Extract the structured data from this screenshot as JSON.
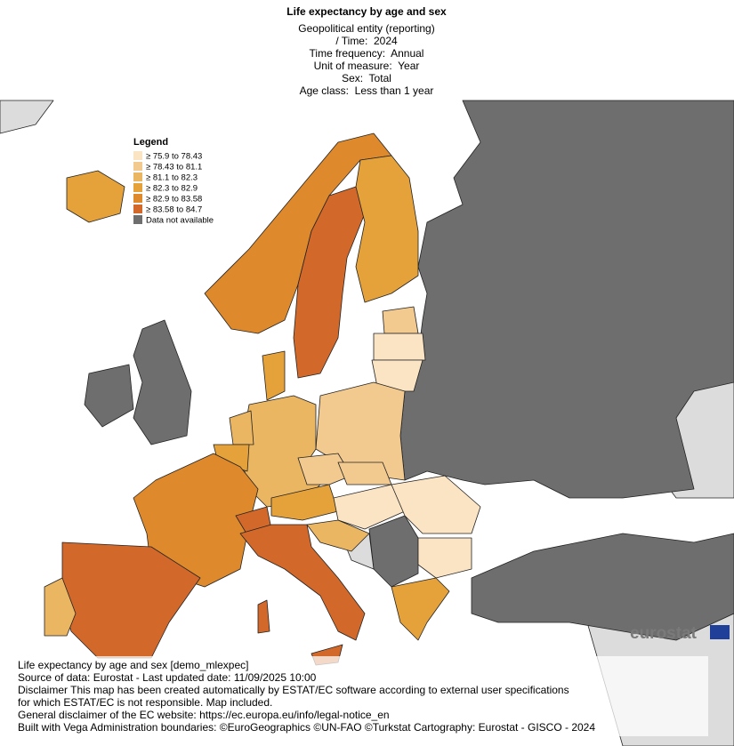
{
  "header": {
    "title": "Life expectancy by age and sex",
    "subtitle_lines": [
      "Geopolitical entity (reporting)",
      "/ Time:  2024",
      "Time frequency:  Annual",
      "Unit of measure:  Year",
      "Sex:  Total",
      "Age class:  Less than 1 year"
    ]
  },
  "legend": {
    "title": "Legend",
    "items": [
      {
        "label": "≥ 75.9 to 78.43",
        "color": "#fbe4c4"
      },
      {
        "label": "≥ 78.43 to 81.1",
        "color": "#f2c98e"
      },
      {
        "label": "≥ 81.1 to 82.3",
        "color": "#ebb662"
      },
      {
        "label": "≥ 82.3 to 82.9",
        "color": "#e5a23b"
      },
      {
        "label": "≥ 82.9 to 83.58",
        "color": "#de8a2c"
      },
      {
        "label": "≥ 83.58 to 84.7",
        "color": "#d2692a"
      },
      {
        "label": "Data not available",
        "color": "#6e6e6e"
      }
    ]
  },
  "logo": "eurostat",
  "footer": {
    "lines": [
      "Life expectancy by age and sex [demo_mlexpec]",
      "Source of data: Eurostat - Last updated date: 11/09/2025 10:00",
      "Disclaimer This map has been created automatically by ESTAT/EC software according to external user specifications",
      "for which ESTAT/EC is not responsible. Map included.",
      "General disclaimer of the EC website: https://ec.europa.eu/info/legal-notice_en",
      "Built with Vega Administration boundaries: ©EuroGeographics ©UN-FAO ©Turkstat Cartography: Eurostat - GISCO - 2024"
    ]
  }
}
